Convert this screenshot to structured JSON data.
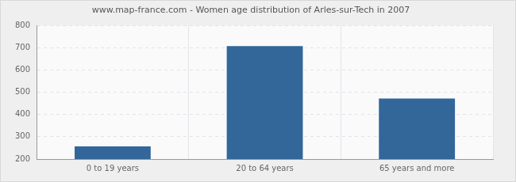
{
  "chart_data": {
    "type": "bar",
    "title": "www.map-france.com - Women age distribution of Arles-sur-Tech in 2007",
    "categories": [
      "0 to 19 years",
      "20 to 64 years",
      "65 years and more"
    ],
    "values": [
      257,
      707,
      472
    ],
    "color": "#336699",
    "ylim": [
      200,
      800
    ],
    "yticks": [
      200,
      300,
      400,
      500,
      600,
      700,
      800
    ],
    "grid": true
  }
}
